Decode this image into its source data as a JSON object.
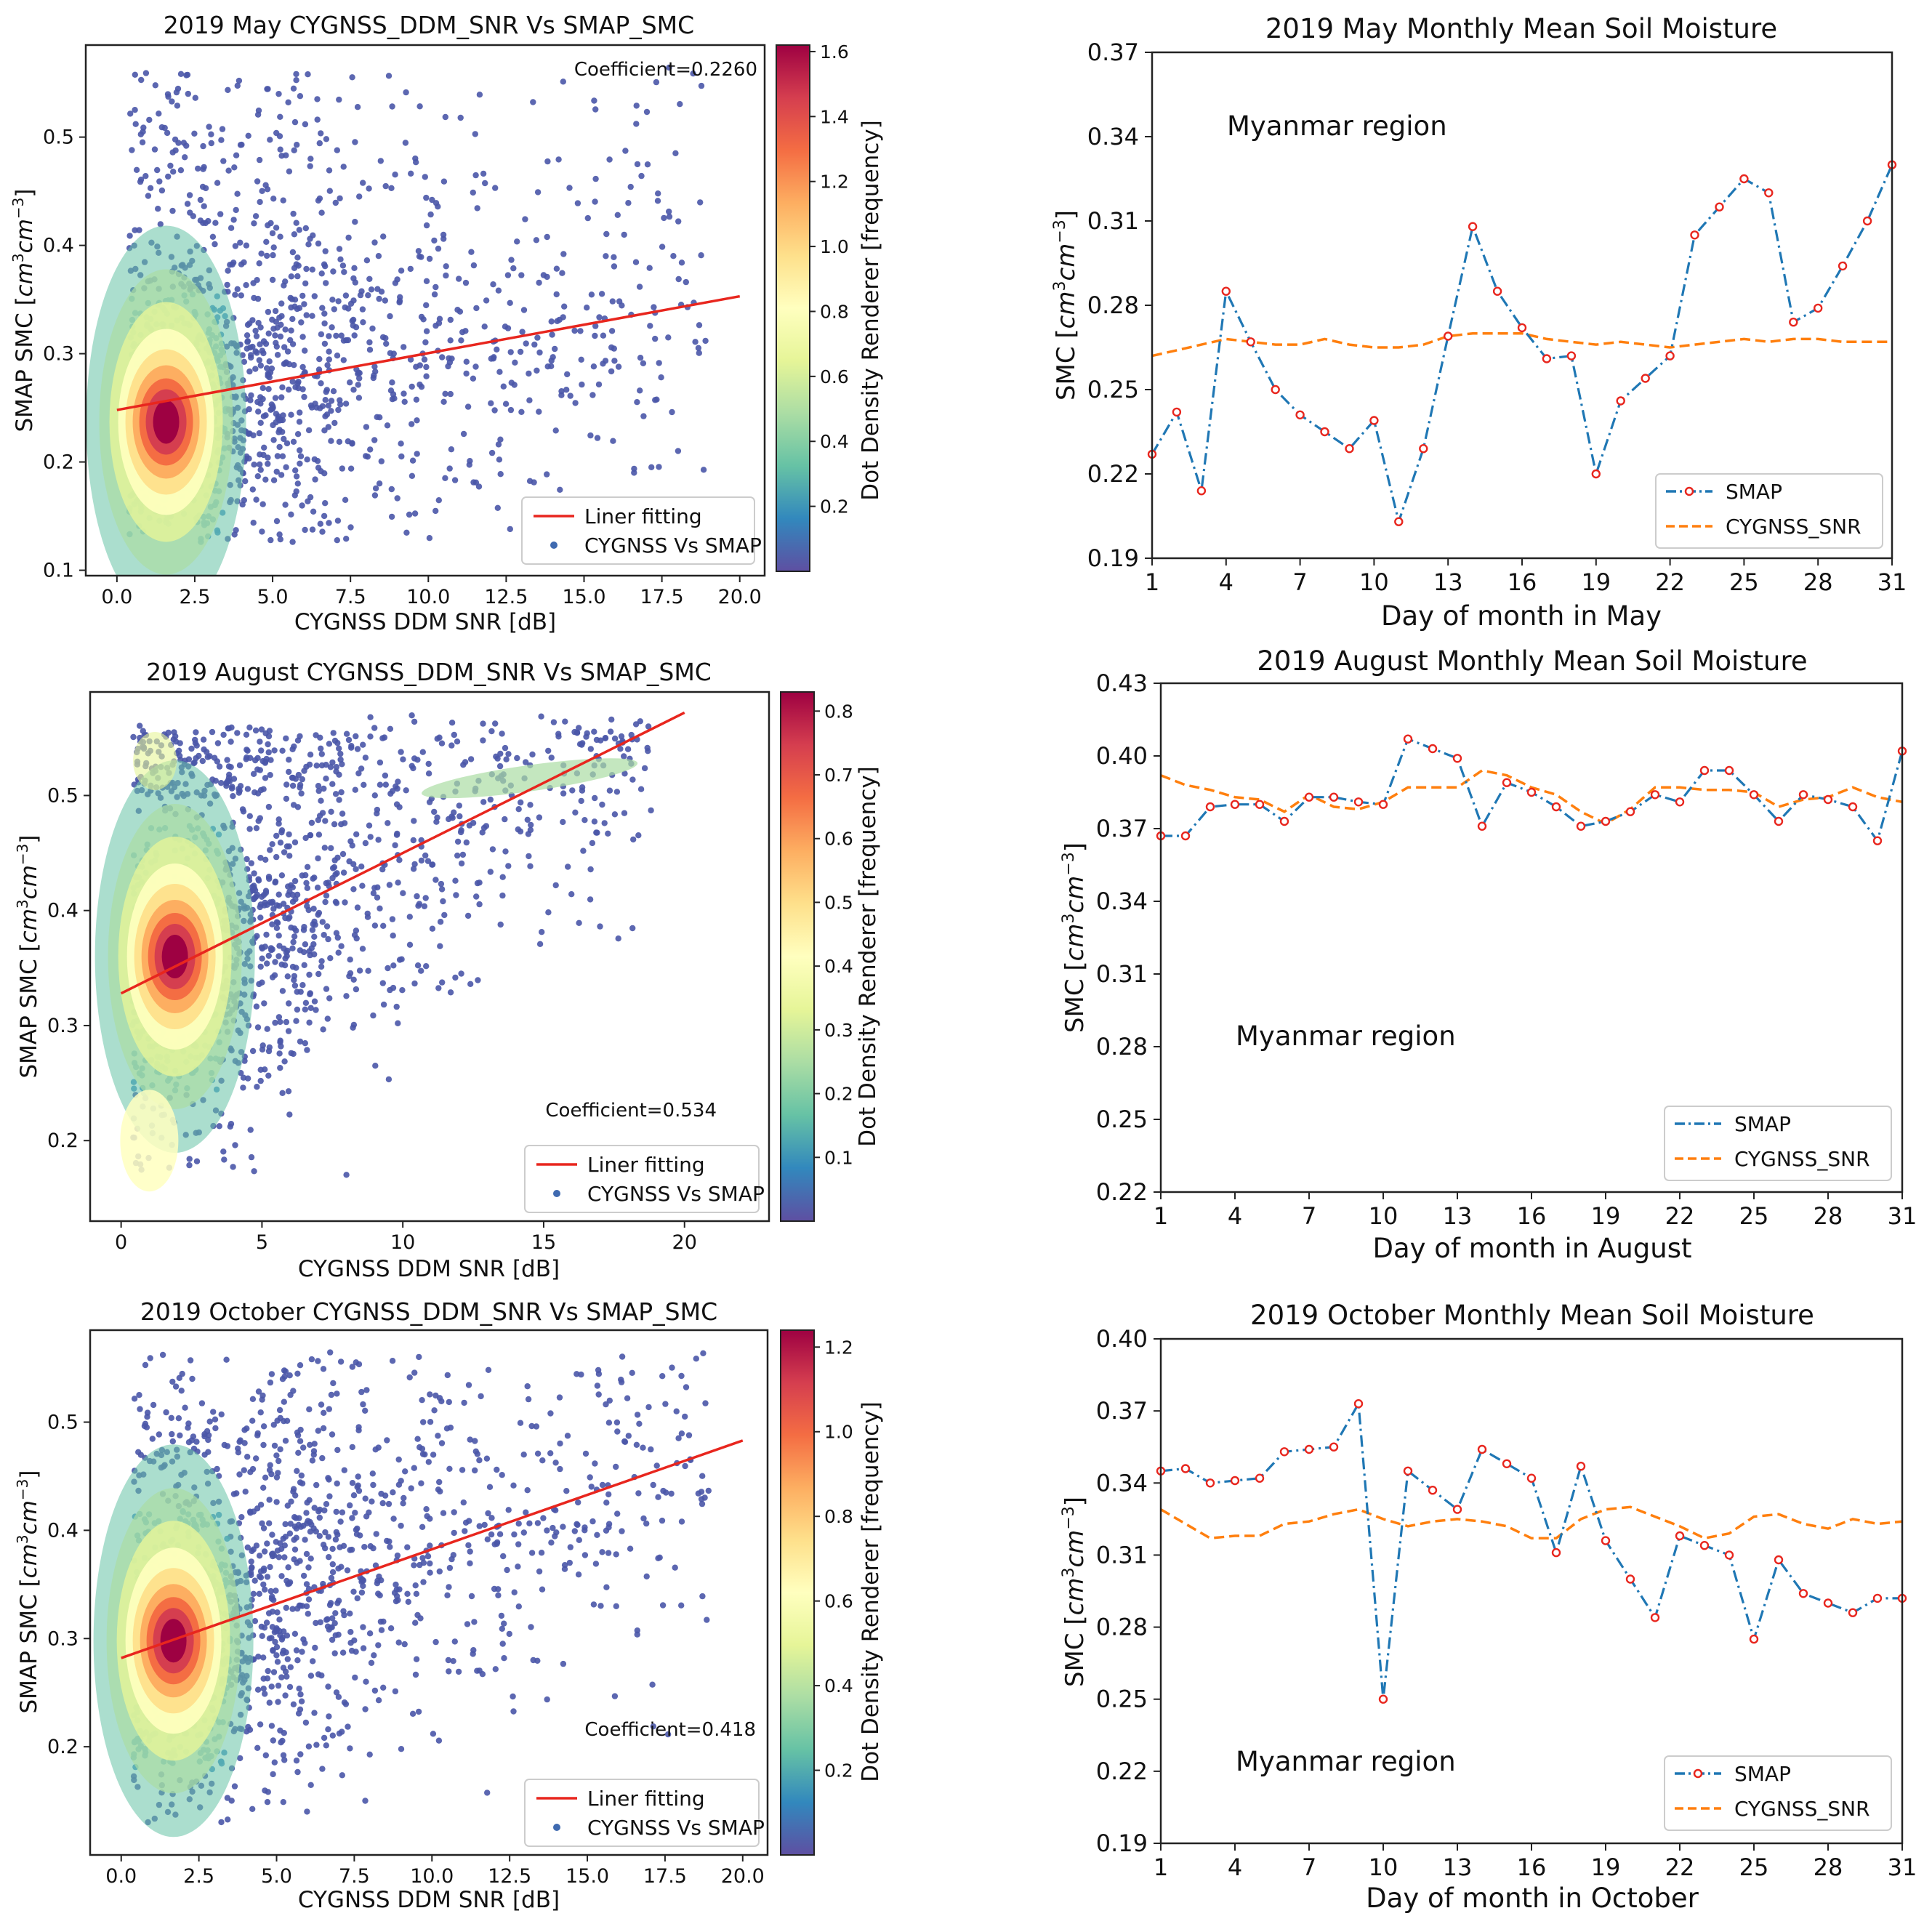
{
  "colors": {
    "smap_line": "#1f77b4",
    "smap_marker_edge": "#e8261e",
    "cygnss_line": "#ff7f0e",
    "fit_line": "#e8261e",
    "scatter_low": "#4a56a8",
    "colormap": [
      "#5e4fa2",
      "#3288bd",
      "#66c2a5",
      "#abdda4",
      "#e6f598",
      "#ffffbf",
      "#fee08b",
      "#fdae61",
      "#f46d43",
      "#d53e4f",
      "#9e0142"
    ]
  },
  "chart_data": [
    {
      "id": "scatter-may",
      "type": "scatter",
      "title": "2019 May CYGNSS_DDM_SNR Vs SMAP_SMC",
      "xlabel": "CYGNSS DDM SNR [dB]",
      "ylabel": "SMAP SMC [cm³cm⁻³]",
      "xlim": [
        -1.0,
        20.8
      ],
      "ylim": [
        0.095,
        0.585
      ],
      "xticks": [
        0.0,
        2.5,
        5.0,
        7.5,
        10.0,
        12.5,
        15.0,
        17.5,
        20.0
      ],
      "xtick_labels": [
        "0.0",
        "2.5",
        "5.0",
        "7.5",
        "10.0",
        "12.5",
        "15.0",
        "17.5",
        "20.0"
      ],
      "yticks": [
        0.1,
        0.2,
        0.3,
        0.4,
        0.5
      ],
      "ytick_labels": [
        "0.1",
        "0.2",
        "0.3",
        "0.4",
        "0.5"
      ],
      "fit": {
        "x": [
          0.0,
          20.0
        ],
        "y": [
          0.248,
          0.353
        ]
      },
      "cluster": {
        "x": 1.3,
        "y": 0.237
      },
      "coefficient_text": "Coefficient=0.2260",
      "coefficient_pos": "top-right",
      "colorbar": {
        "label": "Dot Density Renderer [frequency]",
        "max": 1.62,
        "ticks": [
          0.2,
          0.4,
          0.6,
          0.8,
          1.0,
          1.2,
          1.4,
          1.6
        ],
        "tick_labels": [
          "0.2",
          "0.4",
          "0.6",
          "0.8",
          "1.0",
          "1.2",
          "1.4",
          "1.6"
        ]
      },
      "legend": [
        "Liner fitting",
        "CYGNSS Vs SMAP"
      ]
    },
    {
      "id": "scatter-aug",
      "type": "scatter",
      "title": "2019 August CYGNSS_DDM_SNR Vs SMAP_SMC",
      "xlabel": "CYGNSS DDM SNR [dB]",
      "ylabel": "SMAP SMC [cm³cm⁻³]",
      "xlim": [
        -1.1,
        23.0
      ],
      "ylim": [
        0.13,
        0.59
      ],
      "xticks": [
        0,
        5,
        10,
        15,
        20
      ],
      "xtick_labels": [
        "0",
        "5",
        "10",
        "15",
        "20"
      ],
      "yticks": [
        0.2,
        0.3,
        0.4,
        0.5
      ],
      "ytick_labels": [
        "0.2",
        "0.3",
        "0.4",
        "0.5"
      ],
      "fit": {
        "x": [
          0.0,
          20.0
        ],
        "y": [
          0.328,
          0.572
        ]
      },
      "cluster": {
        "x": 1.6,
        "y": 0.36
      },
      "coefficient_text": "Coefficient=0.534",
      "coefficient_pos": "bottom-right",
      "colorbar": {
        "label": "Dot Density Renderer [frequency]",
        "max": 0.83,
        "ticks": [
          0.1,
          0.2,
          0.3,
          0.4,
          0.5,
          0.6,
          0.7,
          0.8
        ],
        "tick_labels": [
          "0.1",
          "0.2",
          "0.3",
          "0.4",
          "0.5",
          "0.6",
          "0.7",
          "0.8"
        ]
      },
      "legend": [
        "Liner fitting",
        "CYGNSS Vs SMAP"
      ]
    },
    {
      "id": "scatter-oct",
      "type": "scatter",
      "title": "2019 October CYGNSS_DDM_SNR Vs SMAP_SMC",
      "xlabel": "CYGNSS DDM SNR [dB]",
      "ylabel": "SMAP SMC [cm³cm⁻³]",
      "xlim": [
        -1.0,
        20.8
      ],
      "ylim": [
        0.1,
        0.585
      ],
      "xticks": [
        0.0,
        2.5,
        5.0,
        7.5,
        10.0,
        12.5,
        15.0,
        17.5,
        20.0
      ],
      "xtick_labels": [
        "0.0",
        "2.5",
        "5.0",
        "7.5",
        "10.0",
        "12.5",
        "15.0",
        "17.5",
        "20.0"
      ],
      "yticks": [
        0.2,
        0.3,
        0.4,
        0.5
      ],
      "ytick_labels": [
        "0.2",
        "0.3",
        "0.4",
        "0.5"
      ],
      "fit": {
        "x": [
          0.0,
          20.0
        ],
        "y": [
          0.282,
          0.483
        ]
      },
      "cluster": {
        "x": 1.4,
        "y": 0.298
      },
      "coefficient_text": "Coefficient=0.418",
      "coefficient_pos": "bottom-right",
      "colorbar": {
        "label": "Dot Density Renderer [frequency]",
        "max": 1.24,
        "ticks": [
          0.2,
          0.4,
          0.6,
          0.8,
          1.0,
          1.2
        ],
        "tick_labels": [
          "0.2",
          "0.4",
          "0.6",
          "0.8",
          "1.0",
          "1.2"
        ]
      },
      "legend": [
        "Liner fitting",
        "CYGNSS Vs SMAP"
      ]
    },
    {
      "id": "ts-may",
      "type": "line",
      "title": "2019 May Monthly Mean Soil Moisture",
      "xlabel": "Day of month in May",
      "ylabel": "SMC [cm³cm⁻³]",
      "region_label": "Myanmar region",
      "region_pos": "top-left",
      "xlim": [
        1,
        31
      ],
      "ylim": [
        0.19,
        0.37
      ],
      "xticks": [
        1,
        4,
        7,
        10,
        13,
        16,
        19,
        22,
        25,
        28,
        31
      ],
      "xtick_labels": [
        "1",
        "4",
        "7",
        "10",
        "13",
        "16",
        "19",
        "22",
        "25",
        "28",
        "31"
      ],
      "yticks": [
        0.19,
        0.22,
        0.25,
        0.28,
        0.31,
        0.34,
        0.37
      ],
      "ytick_labels": [
        "0.19",
        "0.22",
        "0.25",
        "0.28",
        "0.31",
        "0.34",
        "0.37"
      ],
      "series": [
        {
          "name": "SMAP",
          "x": [
            1,
            2,
            3,
            4,
            5,
            6,
            7,
            8,
            9,
            10,
            11,
            12,
            13,
            14,
            15,
            16,
            17,
            18,
            19,
            20,
            21,
            22,
            23,
            24,
            25,
            26,
            27,
            28,
            29,
            30,
            31
          ],
          "values": [
            0.227,
            0.242,
            0.214,
            0.285,
            0.267,
            0.25,
            0.241,
            0.235,
            0.229,
            0.239,
            0.203,
            0.229,
            0.269,
            0.308,
            0.285,
            0.272,
            0.261,
            0.262,
            0.22,
            0.246,
            0.254,
            0.262,
            0.305,
            0.315,
            0.325,
            0.32,
            0.274,
            0.279,
            0.294,
            0.31,
            0.33
          ]
        },
        {
          "name": "CYGNSS_SNR",
          "x": [
            1,
            2,
            3,
            4,
            5,
            6,
            7,
            8,
            9,
            10,
            11,
            12,
            13,
            14,
            15,
            16,
            17,
            18,
            19,
            20,
            21,
            22,
            23,
            24,
            25,
            26,
            27,
            28,
            29,
            30,
            31
          ],
          "values": [
            0.262,
            0.264,
            0.266,
            0.268,
            0.267,
            0.266,
            0.266,
            0.268,
            0.266,
            0.265,
            0.265,
            0.266,
            0.269,
            0.27,
            0.27,
            0.27,
            0.268,
            0.267,
            0.266,
            0.267,
            0.266,
            0.265,
            0.266,
            0.267,
            0.268,
            0.267,
            0.268,
            0.268,
            0.267,
            0.267,
            0.267
          ]
        }
      ],
      "legend_pos": "bottom-right"
    },
    {
      "id": "ts-aug",
      "type": "line",
      "title": "2019 August Monthly Mean Soil Moisture",
      "xlabel": "Day of month in August",
      "ylabel": "SMC [cm³cm⁻³]",
      "region_label": "Myanmar region",
      "region_pos": "middle-left",
      "xlim": [
        1,
        31
      ],
      "ylim": [
        0.22,
        0.43
      ],
      "xticks": [
        1,
        4,
        7,
        10,
        13,
        16,
        19,
        22,
        25,
        28,
        31
      ],
      "xtick_labels": [
        "1",
        "4",
        "7",
        "10",
        "13",
        "16",
        "19",
        "22",
        "25",
        "28",
        "31"
      ],
      "yticks": [
        0.22,
        0.25,
        0.28,
        0.31,
        0.34,
        0.37,
        0.4,
        0.43
      ],
      "ytick_labels": [
        "0.22",
        "0.25",
        "0.28",
        "0.31",
        "0.34",
        "0.37",
        "0.40",
        "0.43"
      ],
      "series": [
        {
          "name": "SMAP",
          "x": [
            1,
            2,
            3,
            4,
            5,
            6,
            7,
            8,
            9,
            10,
            11,
            12,
            13,
            14,
            15,
            16,
            17,
            18,
            19,
            20,
            21,
            22,
            23,
            24,
            25,
            26,
            27,
            28,
            29,
            30,
            31
          ],
          "values": [
            0.367,
            0.367,
            0.379,
            0.38,
            0.38,
            0.373,
            0.383,
            0.383,
            0.381,
            0.38,
            0.407,
            0.403,
            0.399,
            0.371,
            0.389,
            0.385,
            0.379,
            0.371,
            0.373,
            0.377,
            0.384,
            0.381,
            0.394,
            0.394,
            0.384,
            0.373,
            0.384,
            0.382,
            0.379,
            0.365,
            0.402
          ]
        },
        {
          "name": "CYGNSS_SNR",
          "x": [
            1,
            2,
            3,
            4,
            5,
            6,
            7,
            8,
            9,
            10,
            11,
            12,
            13,
            14,
            15,
            16,
            17,
            18,
            19,
            20,
            21,
            22,
            23,
            24,
            25,
            26,
            27,
            28,
            29,
            30,
            31
          ],
          "values": [
            0.392,
            0.388,
            0.386,
            0.383,
            0.382,
            0.377,
            0.384,
            0.379,
            0.378,
            0.381,
            0.387,
            0.387,
            0.387,
            0.394,
            0.392,
            0.387,
            0.384,
            0.377,
            0.372,
            0.378,
            0.387,
            0.387,
            0.386,
            0.386,
            0.385,
            0.379,
            0.382,
            0.383,
            0.387,
            0.383,
            0.381
          ]
        }
      ],
      "legend_pos": "bottom-right"
    },
    {
      "id": "ts-oct",
      "type": "line",
      "title": "2019 October Monthly Mean Soil Moisture",
      "xlabel": "Day of month in October",
      "ylabel": "SMC [cm³cm⁻³]",
      "region_label": "Myanmar region",
      "region_pos": "bottom-left",
      "xlim": [
        1,
        31
      ],
      "ylim": [
        0.19,
        0.4
      ],
      "xticks": [
        1,
        4,
        7,
        10,
        13,
        16,
        19,
        22,
        25,
        28,
        31
      ],
      "xtick_labels": [
        "1",
        "4",
        "7",
        "10",
        "13",
        "16",
        "19",
        "22",
        "25",
        "28",
        "31"
      ],
      "yticks": [
        0.19,
        0.22,
        0.25,
        0.28,
        0.31,
        0.34,
        0.37,
        0.4
      ],
      "ytick_labels": [
        "0.19",
        "0.22",
        "0.25",
        "0.28",
        "0.31",
        "0.34",
        "0.37",
        "0.40"
      ],
      "series": [
        {
          "name": "SMAP",
          "x": [
            1,
            2,
            3,
            4,
            5,
            6,
            7,
            8,
            9,
            10,
            11,
            12,
            13,
            14,
            15,
            16,
            17,
            18,
            19,
            20,
            21,
            22,
            23,
            24,
            25,
            26,
            27,
            28,
            29,
            30,
            31
          ],
          "values": [
            0.345,
            0.346,
            0.34,
            0.341,
            0.342,
            0.353,
            0.354,
            0.355,
            0.373,
            0.25,
            0.345,
            0.337,
            0.329,
            0.354,
            0.348,
            0.342,
            0.311,
            0.347,
            0.316,
            0.3,
            0.284,
            0.318,
            0.314,
            0.31,
            0.275,
            0.308,
            0.294,
            0.29,
            0.286,
            0.292,
            0.292
          ]
        },
        {
          "name": "CYGNSS_SNR",
          "x": [
            1,
            2,
            3,
            4,
            5,
            6,
            7,
            8,
            9,
            10,
            11,
            12,
            13,
            14,
            15,
            16,
            17,
            18,
            19,
            20,
            21,
            22,
            23,
            24,
            25,
            26,
            27,
            28,
            29,
            30,
            31
          ],
          "values": [
            0.329,
            0.323,
            0.317,
            0.318,
            0.318,
            0.323,
            0.324,
            0.327,
            0.329,
            0.325,
            0.322,
            0.324,
            0.325,
            0.324,
            0.322,
            0.317,
            0.317,
            0.325,
            0.329,
            0.33,
            0.326,
            0.322,
            0.317,
            0.319,
            0.326,
            0.327,
            0.323,
            0.321,
            0.325,
            0.323,
            0.324
          ]
        }
      ],
      "legend_pos": "bottom-right"
    }
  ]
}
